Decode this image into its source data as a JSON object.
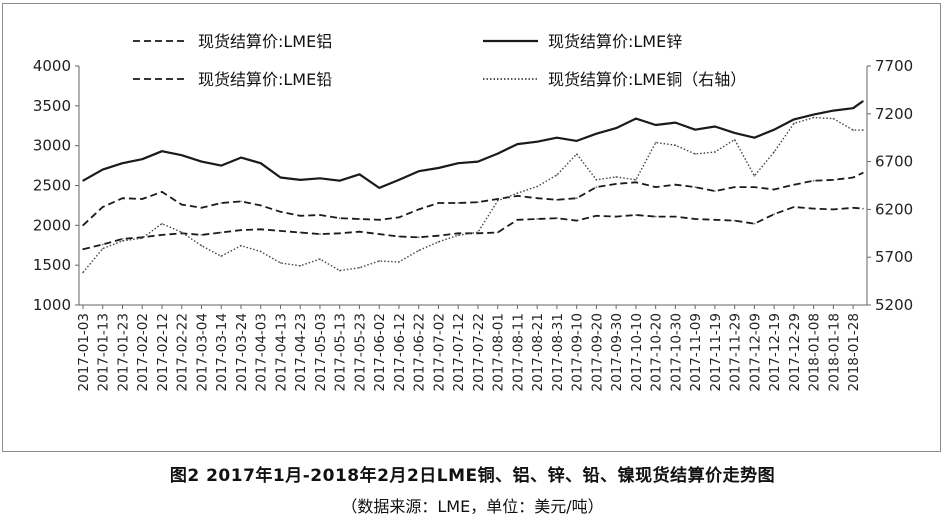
{
  "figure": {
    "title": "图2 2017年1月-2018年2月2日LME铜、铝、锌、铅、镍现货结算价走势图",
    "source": "（数据来源：LME，单位：美元/吨）"
  },
  "chart_data": {
    "type": "line",
    "title": "",
    "xlabel": "",
    "ylabel": "",
    "left_ylim": [
      1000,
      4000
    ],
    "left_yticks": [
      1000,
      1500,
      2000,
      2500,
      3000,
      3500,
      4000
    ],
    "right_ylim": [
      5200,
      7700
    ],
    "right_yticks": [
      5200,
      5700,
      6200,
      6700,
      7200,
      7700
    ],
    "grid": false,
    "legend_position": "top",
    "x_tick_labels": [
      "2017-01-03",
      "2017-01-13",
      "2017-01-23",
      "2017-02-02",
      "2017-02-12",
      "2017-02-22",
      "2017-03-04",
      "2017-03-14",
      "2017-03-24",
      "2017-04-03",
      "2017-04-13",
      "2017-04-23",
      "2017-05-03",
      "2017-05-13",
      "2017-05-23",
      "2017-06-02",
      "2017-06-12",
      "2017-06-22",
      "2017-07-02",
      "2017-07-12",
      "2017-07-22",
      "2017-08-01",
      "2017-08-11",
      "2017-08-21",
      "2017-08-31",
      "2017-09-10",
      "2017-09-20",
      "2017-09-30",
      "2017-10-10",
      "2017-10-20",
      "2017-10-30",
      "2017-11-09",
      "2017-11-19",
      "2017-11-29",
      "2017-12-09",
      "2017-12-19",
      "2017-12-29",
      "2018-01-08",
      "2018-01-18",
      "2018-01-28"
    ],
    "x": [
      "2017-01-03",
      "2017-01-13",
      "2017-01-23",
      "2017-02-02",
      "2017-02-12",
      "2017-02-22",
      "2017-03-04",
      "2017-03-14",
      "2017-03-24",
      "2017-04-03",
      "2017-04-13",
      "2017-04-23",
      "2017-05-03",
      "2017-05-13",
      "2017-05-23",
      "2017-06-02",
      "2017-06-12",
      "2017-06-22",
      "2017-07-02",
      "2017-07-12",
      "2017-07-22",
      "2017-08-01",
      "2017-08-11",
      "2017-08-21",
      "2017-08-31",
      "2017-09-10",
      "2017-09-20",
      "2017-09-30",
      "2017-10-10",
      "2017-10-20",
      "2017-10-30",
      "2017-11-09",
      "2017-11-19",
      "2017-11-29",
      "2017-12-09",
      "2017-12-19",
      "2017-12-29",
      "2018-01-08",
      "2018-01-18",
      "2018-01-28",
      "2018-02-02"
    ],
    "series": [
      {
        "name": "现货结算价:LME铝",
        "axis": "left",
        "style": "dashed",
        "color": "#1a1a1a",
        "values": [
          1700,
          1760,
          1830,
          1850,
          1880,
          1900,
          1880,
          1910,
          1940,
          1950,
          1930,
          1910,
          1890,
          1900,
          1920,
          1890,
          1860,
          1850,
          1870,
          1900,
          1900,
          1910,
          2070,
          2080,
          2090,
          2060,
          2120,
          2110,
          2130,
          2110,
          2110,
          2080,
          2070,
          2060,
          2020,
          2140,
          2230,
          2210,
          2200,
          2220,
          2210
        ]
      },
      {
        "name": "现货结算价:LME锌",
        "axis": "left",
        "style": "solid",
        "color": "#1a1a1a",
        "values": [
          2560,
          2700,
          2780,
          2830,
          2930,
          2880,
          2800,
          2750,
          2850,
          2780,
          2600,
          2570,
          2590,
          2560,
          2640,
          2470,
          2570,
          2680,
          2720,
          2780,
          2800,
          2900,
          3020,
          3050,
          3100,
          3060,
          3150,
          3220,
          3340,
          3260,
          3290,
          3200,
          3240,
          3160,
          3100,
          3200,
          3330,
          3390,
          3440,
          3470,
          3560
        ]
      },
      {
        "name": "现货结算价:LME铅",
        "axis": "left",
        "style": "dashed",
        "color": "#1a1a1a",
        "values": [
          2000,
          2230,
          2340,
          2330,
          2420,
          2260,
          2220,
          2280,
          2300,
          2250,
          2170,
          2120,
          2130,
          2090,
          2080,
          2070,
          2100,
          2200,
          2280,
          2280,
          2290,
          2330,
          2370,
          2340,
          2320,
          2340,
          2480,
          2520,
          2540,
          2480,
          2510,
          2480,
          2430,
          2480,
          2480,
          2450,
          2510,
          2560,
          2570,
          2600,
          2660
        ]
      },
      {
        "name": "现货结算价:LME铜（右轴）",
        "axis": "right",
        "style": "dotted",
        "color": "#444444",
        "values": [
          5540,
          5790,
          5870,
          5900,
          6050,
          5960,
          5820,
          5710,
          5820,
          5760,
          5640,
          5610,
          5680,
          5560,
          5590,
          5660,
          5650,
          5770,
          5860,
          5930,
          5960,
          6290,
          6370,
          6440,
          6560,
          6780,
          6510,
          6540,
          6510,
          6900,
          6870,
          6780,
          6800,
          6930,
          6550,
          6800,
          7100,
          7160,
          7150,
          7030,
          7030
        ]
      }
    ]
  }
}
